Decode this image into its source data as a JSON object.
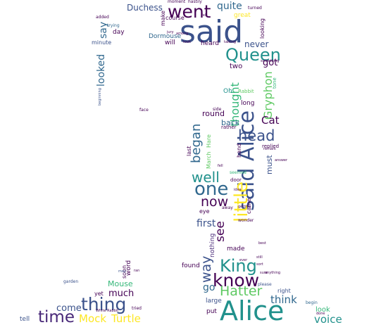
{
  "palette": {
    "background": "#ffffff",
    "c1": "#440154",
    "c2": "#3b528b",
    "c3": "#21918c",
    "c4": "#5ec962",
    "c5": "#fde725",
    "c6": "#31688e",
    "c7": "#35b779",
    "c8": "#482878"
  },
  "words": {
    "said": "said",
    "alice_big": "Alice",
    "said_alice": "said Alice",
    "went": "went",
    "queen": "Queen",
    "little": "little",
    "one": "one",
    "king": "King",
    "know": "know",
    "thing": "thing",
    "time": "time",
    "hatter": "Hatter",
    "head": "head",
    "well": "well",
    "now": "now",
    "way": "way",
    "began": "began",
    "see": "see",
    "mock": "Mock",
    "turtle": "Turtle",
    "voice": "voice",
    "think": "think",
    "look": "look",
    "go": "go",
    "thought": "thought",
    "gryphon": "Gryphon",
    "cat": "Cat",
    "got": "got",
    "quite": "quite",
    "duchess": "Duchess",
    "never": "never",
    "looked": "looked",
    "say": "say",
    "first": "first",
    "round": "round",
    "back": "back",
    "much": "much",
    "come": "come",
    "mouse": "Mouse",
    "must": "must",
    "two": "two",
    "dormouse": "Dormouse",
    "will": "will",
    "heard": "heard",
    "long": "long",
    "found": "found",
    "nothing": "nothing",
    "made": "made",
    "put": "put",
    "large": "large",
    "tell": "tell",
    "yet": "yet",
    "soon": "soon",
    "word": "word",
    "right": "right",
    "day": "day",
    "minute": "minute",
    "last": "last",
    "march": "March",
    "hare": "Hare",
    "eye": "eye",
    "door": "door",
    "rather": "rather",
    "replied": "replied",
    "oh": "Oh",
    "great": "great",
    "looking": "looking",
    "tone": "tone",
    "make": "make",
    "course": "course",
    "moment": "moment",
    "hastily": "hastily",
    "turned": "turned",
    "trying": "trying",
    "added": "added",
    "face": "face",
    "side": "side",
    "hand": "hand",
    "came": "came",
    "seemed": "seemed",
    "wonder": "wonder",
    "away": "away",
    "garden": "garden",
    "please": "please",
    "begin": "begin",
    "done": "done",
    "white_rabbit": "White Rabbit",
    "tried": "tried",
    "something": "something",
    "rabbit": "Rabbit",
    "fell": "fell",
    "beginning": "beginning",
    "sure": "sure",
    "talking": "talking",
    "felt": "felt",
    "ever": "ever",
    "may": "may",
    "still": "still",
    "ran": "ran",
    "jury": "jury",
    "sort": "sort",
    "idea": "idea",
    "getting": "getting",
    "answer": "answer",
    "remark": "remark",
    "anything": "anything",
    "best": "best",
    "among": "among",
    "took": "took"
  }
}
